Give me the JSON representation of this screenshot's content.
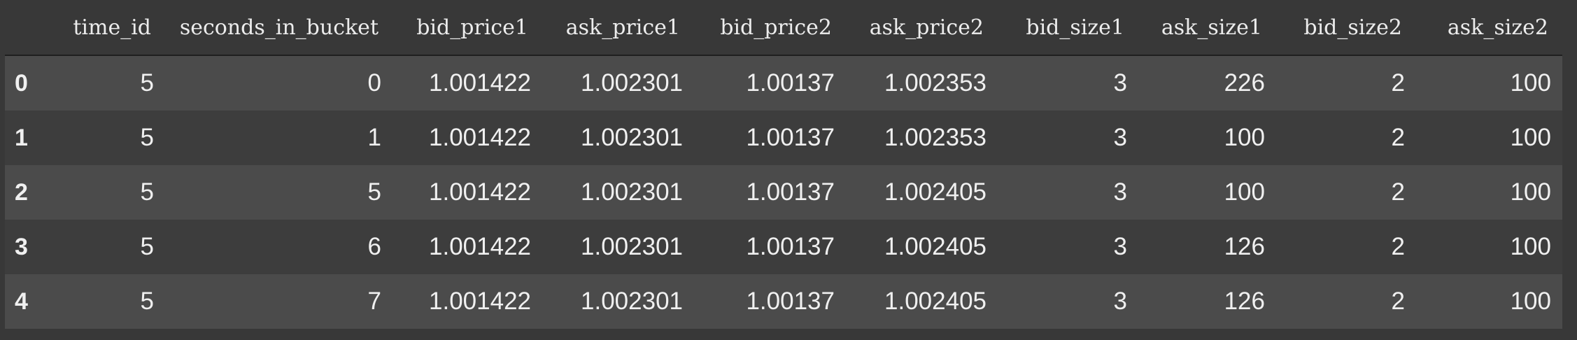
{
  "table": {
    "index_header": "",
    "columns": [
      "time_id",
      "seconds_in_bucket",
      "bid_price1",
      "ask_price1",
      "bid_price2",
      "ask_price2",
      "bid_size1",
      "ask_size1",
      "bid_size2",
      "ask_size2"
    ],
    "rows": [
      {
        "index": "0",
        "cells": [
          "5",
          "0",
          "1.001422",
          "1.002301",
          "1.00137",
          "1.002353",
          "3",
          "226",
          "2",
          "100"
        ]
      },
      {
        "index": "1",
        "cells": [
          "5",
          "1",
          "1.001422",
          "1.002301",
          "1.00137",
          "1.002353",
          "3",
          "100",
          "2",
          "100"
        ]
      },
      {
        "index": "2",
        "cells": [
          "5",
          "5",
          "1.001422",
          "1.002301",
          "1.00137",
          "1.002405",
          "3",
          "100",
          "2",
          "100"
        ]
      },
      {
        "index": "3",
        "cells": [
          "5",
          "6",
          "1.001422",
          "1.002301",
          "1.00137",
          "1.002405",
          "3",
          "126",
          "2",
          "100"
        ]
      },
      {
        "index": "4",
        "cells": [
          "5",
          "7",
          "1.001422",
          "1.002301",
          "1.00137",
          "1.002405",
          "3",
          "126",
          "2",
          "100"
        ]
      }
    ]
  },
  "colors": {
    "background": "#383838",
    "row_odd": "#4b4b4b",
    "row_even": "#3d3d3d",
    "text": "#f0f0f0",
    "header_rule": "#1f1f1f"
  }
}
